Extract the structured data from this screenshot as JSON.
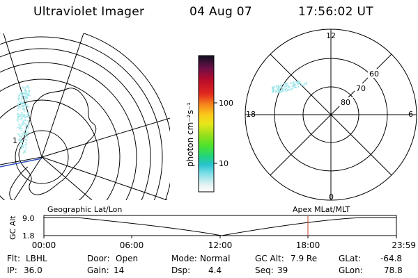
{
  "header": {
    "title": "Ultraviolet Imager",
    "date": "04 Aug 07",
    "time": "17:56:02 UT"
  },
  "colorbar": {
    "unit_label": "photon cm⁻²s⁻¹",
    "tick_labels": [
      "100",
      "10"
    ]
  },
  "polar_plot": {
    "lat_labels": [
      "60",
      "70",
      "80"
    ],
    "mlt_labels": {
      "top": "12",
      "left": "18",
      "right": "6",
      "bottom": "0"
    }
  },
  "map": {
    "edge_label": "1"
  },
  "altitude_panel": {
    "ylabel": "GC Alt",
    "y_ticks": [
      "9.0",
      "1.8"
    ],
    "left_title": "Geographic Lat/Lon",
    "right_title": "Apex  MLat/MLT",
    "x_ticks": [
      "00:00",
      "06:00",
      "12:00",
      "18:00",
      "23:59"
    ]
  },
  "footer": {
    "row1": [
      {
        "key": "Flt:",
        "value": "LBHL"
      },
      {
        "key": "Door:",
        "value": "Open"
      },
      {
        "key": "Mode:",
        "value": "Normal"
      },
      {
        "key": "GC Alt:",
        "value": "7.9 Re"
      },
      {
        "key": "GLat:",
        "value": "-64.8"
      }
    ],
    "row2": [
      {
        "key": "IP:",
        "value": "36.0"
      },
      {
        "key": "Gain:",
        "value": "14"
      },
      {
        "key": "Dsp:",
        "value": "4.4"
      },
      {
        "key": "Seq:",
        "value": "39"
      },
      {
        "key": "GLon:",
        "value": "78.8"
      }
    ]
  },
  "colors": {
    "foreground": "#000000",
    "background": "#ffffff",
    "aurora": "#9be6ea",
    "marker": "#c0392b",
    "map_accent": "#2f4fbf"
  }
}
